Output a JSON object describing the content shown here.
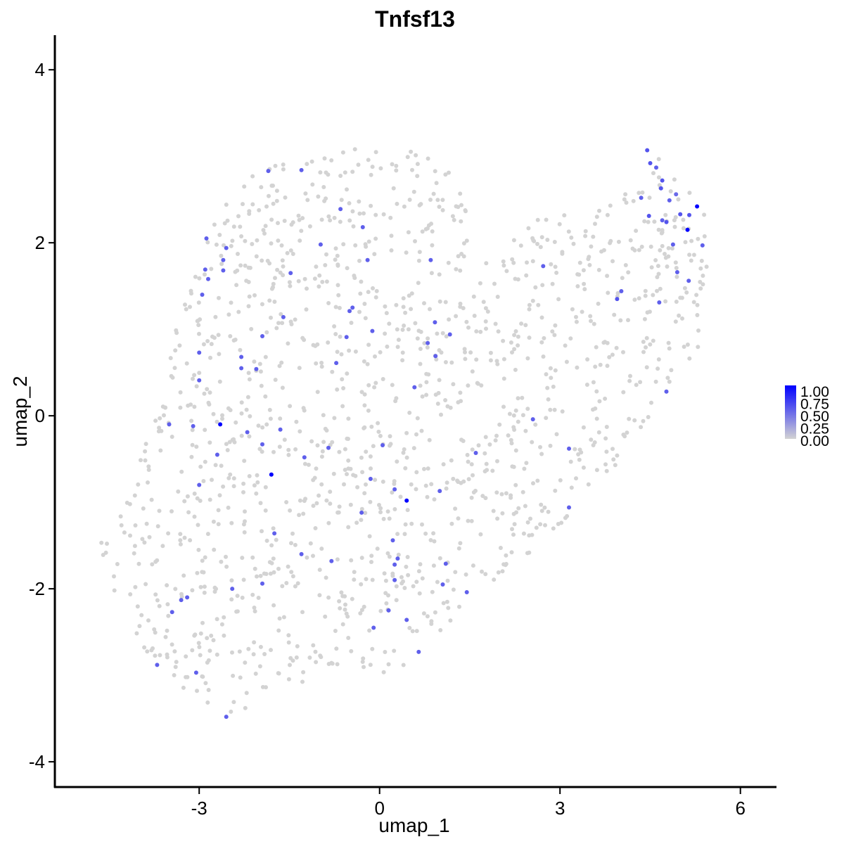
{
  "chart_data": {
    "type": "scatter",
    "title": "Tnfsf13",
    "xlabel": "umap_1",
    "ylabel": "umap_2",
    "xlim": [
      -5.4,
      6.6
    ],
    "ylim": [
      -4.3,
      4.4
    ],
    "xticks": [
      -3,
      0,
      3,
      6
    ],
    "xtick_labels": [
      "-3",
      "0",
      "3",
      "6"
    ],
    "yticks": [
      -4,
      -2,
      0,
      2,
      4
    ],
    "ytick_labels": [
      "-4",
      "-2",
      "0",
      "2",
      "4"
    ],
    "grid": false,
    "legend": {
      "placement": "right",
      "labels": [
        "1.00",
        "0.75",
        "0.50",
        "0.25",
        "0.00"
      ],
      "low_color": "#d3d3d3",
      "high_color": "#0000ff"
    },
    "background_point_color": "#d3d3d3",
    "background_point_count": 1400,
    "expressing_points": [
      {
        "x": 4.45,
        "y": 3.07,
        "v": 0.6
      },
      {
        "x": 4.5,
        "y": 2.92,
        "v": 0.6
      },
      {
        "x": 4.6,
        "y": 2.87,
        "v": 0.55
      },
      {
        "x": 4.7,
        "y": 2.72,
        "v": 0.6
      },
      {
        "x": 4.68,
        "y": 2.63,
        "v": 0.6
      },
      {
        "x": 4.82,
        "y": 2.49,
        "v": 0.55
      },
      {
        "x": 4.35,
        "y": 2.52,
        "v": 0.55
      },
      {
        "x": 4.93,
        "y": 2.56,
        "v": 0.5
      },
      {
        "x": 4.48,
        "y": 2.31,
        "v": 0.6
      },
      {
        "x": 4.7,
        "y": 2.26,
        "v": 0.55
      },
      {
        "x": 4.77,
        "y": 2.24,
        "v": 0.6
      },
      {
        "x": 5.0,
        "y": 2.33,
        "v": 0.6
      },
      {
        "x": 5.15,
        "y": 2.32,
        "v": 0.6
      },
      {
        "x": 5.28,
        "y": 2.42,
        "v": 1.0
      },
      {
        "x": 5.12,
        "y": 2.15,
        "v": 1.0
      },
      {
        "x": 5.37,
        "y": 1.97,
        "v": 0.55
      },
      {
        "x": 4.88,
        "y": 1.98,
        "v": 0.55
      },
      {
        "x": 4.95,
        "y": 1.66,
        "v": 0.55
      },
      {
        "x": 5.14,
        "y": 1.56,
        "v": 0.55
      },
      {
        "x": 4.02,
        "y": 1.44,
        "v": 0.55
      },
      {
        "x": 3.95,
        "y": 1.35,
        "v": 0.6
      },
      {
        "x": 4.65,
        "y": 1.31,
        "v": 0.55
      },
      {
        "x": 2.72,
        "y": 1.73,
        "v": 0.55
      },
      {
        "x": 4.77,
        "y": 0.28,
        "v": 0.55
      },
      {
        "x": 2.55,
        "y": -0.04,
        "v": 0.55
      },
      {
        "x": 3.15,
        "y": -0.38,
        "v": 0.55
      },
      {
        "x": 3.15,
        "y": -1.06,
        "v": 0.55
      },
      {
        "x": -2.88,
        "y": 2.05,
        "v": 0.55
      },
      {
        "x": -2.55,
        "y": 1.94,
        "v": 0.55
      },
      {
        "x": -2.9,
        "y": 1.69,
        "v": 0.55
      },
      {
        "x": -2.6,
        "y": 1.8,
        "v": 0.55
      },
      {
        "x": -2.85,
        "y": 1.58,
        "v": 0.55
      },
      {
        "x": -2.6,
        "y": 1.68,
        "v": 0.55
      },
      {
        "x": -2.95,
        "y": 1.4,
        "v": 0.55
      },
      {
        "x": -1.85,
        "y": 2.83,
        "v": 0.55
      },
      {
        "x": -1.3,
        "y": 2.84,
        "v": 0.55
      },
      {
        "x": -0.65,
        "y": 2.39,
        "v": 0.55
      },
      {
        "x": -0.28,
        "y": 2.18,
        "v": 0.55
      },
      {
        "x": -0.98,
        "y": 1.98,
        "v": 0.55
      },
      {
        "x": -0.2,
        "y": 1.8,
        "v": 0.55
      },
      {
        "x": 0.85,
        "y": 1.8,
        "v": 0.55
      },
      {
        "x": -1.48,
        "y": 1.65,
        "v": 0.55
      },
      {
        "x": -0.45,
        "y": 1.25,
        "v": 0.55
      },
      {
        "x": -0.5,
        "y": 1.21,
        "v": 0.55
      },
      {
        "x": -1.6,
        "y": 1.14,
        "v": 0.55
      },
      {
        "x": -1.95,
        "y": 0.92,
        "v": 0.55
      },
      {
        "x": -0.12,
        "y": 0.98,
        "v": 0.55
      },
      {
        "x": 0.92,
        "y": 1.08,
        "v": 0.55
      },
      {
        "x": 1.17,
        "y": 0.94,
        "v": 0.55
      },
      {
        "x": -0.55,
        "y": 0.91,
        "v": 0.55
      },
      {
        "x": 0.8,
        "y": 0.84,
        "v": 0.55
      },
      {
        "x": 0.93,
        "y": 0.69,
        "v": 0.55
      },
      {
        "x": -3.0,
        "y": 0.73,
        "v": 0.55
      },
      {
        "x": -2.3,
        "y": 0.68,
        "v": 0.55
      },
      {
        "x": -0.72,
        "y": 0.61,
        "v": 0.55
      },
      {
        "x": -2.3,
        "y": 0.55,
        "v": 0.55
      },
      {
        "x": -2.05,
        "y": 0.54,
        "v": 0.55
      },
      {
        "x": -3.0,
        "y": 0.41,
        "v": 0.55
      },
      {
        "x": 0.58,
        "y": 0.33,
        "v": 0.55
      },
      {
        "x": -3.5,
        "y": -0.1,
        "v": 0.55
      },
      {
        "x": -3.1,
        "y": -0.12,
        "v": 0.55
      },
      {
        "x": -2.65,
        "y": -0.1,
        "v": 1.0
      },
      {
        "x": -2.2,
        "y": -0.19,
        "v": 0.55
      },
      {
        "x": -1.65,
        "y": -0.16,
        "v": 0.55
      },
      {
        "x": -1.95,
        "y": -0.33,
        "v": 0.55
      },
      {
        "x": -0.85,
        "y": -0.37,
        "v": 0.55
      },
      {
        "x": 0.05,
        "y": -0.34,
        "v": 0.55
      },
      {
        "x": -2.7,
        "y": -0.45,
        "v": 0.55
      },
      {
        "x": -1.25,
        "y": -0.48,
        "v": 0.55
      },
      {
        "x": 1.6,
        "y": -0.43,
        "v": 0.55
      },
      {
        "x": -1.8,
        "y": -0.68,
        "v": 1.0
      },
      {
        "x": -0.15,
        "y": -0.73,
        "v": 0.55
      },
      {
        "x": -3.0,
        "y": -0.8,
        "v": 0.55
      },
      {
        "x": 0.25,
        "y": -0.85,
        "v": 0.55
      },
      {
        "x": 1.0,
        "y": -0.87,
        "v": 0.55
      },
      {
        "x": 0.45,
        "y": -0.98,
        "v": 1.0
      },
      {
        "x": -0.3,
        "y": -1.12,
        "v": 0.55
      },
      {
        "x": -1.75,
        "y": -1.36,
        "v": 0.55
      },
      {
        "x": 0.22,
        "y": -1.44,
        "v": 0.55
      },
      {
        "x": -1.3,
        "y": -1.6,
        "v": 0.55
      },
      {
        "x": 0.3,
        "y": -1.65,
        "v": 0.55
      },
      {
        "x": 0.25,
        "y": -1.72,
        "v": 0.55
      },
      {
        "x": -0.8,
        "y": -1.68,
        "v": 0.55
      },
      {
        "x": 1.1,
        "y": -1.71,
        "v": 0.55
      },
      {
        "x": 0.25,
        "y": -1.9,
        "v": 0.55
      },
      {
        "x": 1.05,
        "y": -1.95,
        "v": 0.55
      },
      {
        "x": -1.95,
        "y": -1.94,
        "v": 0.55
      },
      {
        "x": -2.45,
        "y": -2.0,
        "v": 0.55
      },
      {
        "x": 1.45,
        "y": -2.04,
        "v": 0.55
      },
      {
        "x": -3.2,
        "y": -2.1,
        "v": 0.55
      },
      {
        "x": -3.3,
        "y": -2.13,
        "v": 0.55
      },
      {
        "x": 0.15,
        "y": -2.25,
        "v": 0.55
      },
      {
        "x": -3.45,
        "y": -2.27,
        "v": 0.55
      },
      {
        "x": 0.45,
        "y": -2.36,
        "v": 0.55
      },
      {
        "x": -0.1,
        "y": -2.45,
        "v": 0.55
      },
      {
        "x": 0.65,
        "y": -2.73,
        "v": 0.55
      },
      {
        "x": -3.7,
        "y": -2.88,
        "v": 0.55
      },
      {
        "x": -3.05,
        "y": -2.97,
        "v": 0.55
      },
      {
        "x": -2.55,
        "y": -3.48,
        "v": 0.55
      }
    ]
  }
}
